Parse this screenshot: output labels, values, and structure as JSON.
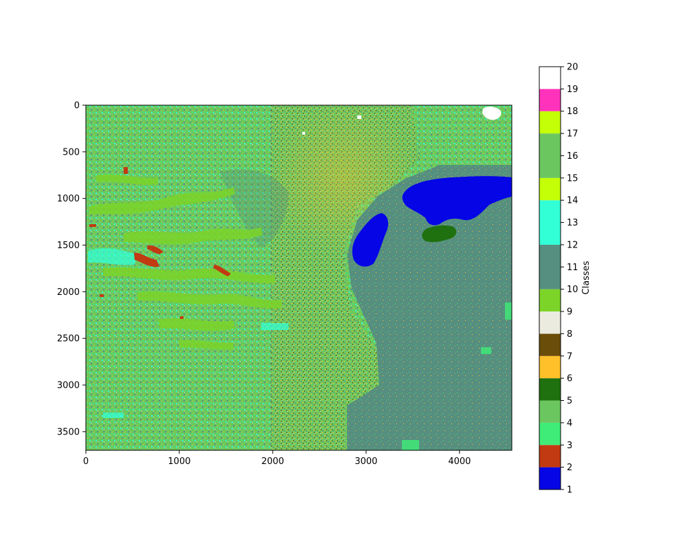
{
  "chart_data": {
    "type": "heatmap",
    "title": "",
    "xlabel": "",
    "ylabel": "",
    "x_range": [
      0,
      4560
    ],
    "y_range": [
      0,
      3700
    ],
    "y_inverted": true,
    "x_ticks": [
      0,
      1000,
      2000,
      3000,
      4000
    ],
    "y_ticks": [
      0,
      500,
      1000,
      1500,
      2000,
      2500,
      3000,
      3500
    ],
    "x_tick_labels": [
      "0",
      "1000",
      "2000",
      "3000",
      "4000"
    ],
    "y_tick_labels": [
      "0",
      "500",
      "1000",
      "1500",
      "2000",
      "2500",
      "3000",
      "3500"
    ],
    "colorbar": {
      "label": "Classes",
      "range": [
        1,
        20
      ],
      "ticks": [
        "1",
        "2",
        "3",
        "4",
        "5",
        "6",
        "7",
        "8",
        "9",
        "10",
        "11",
        "12",
        "13",
        "14",
        "15",
        "16",
        "17",
        "18",
        "19",
        "20"
      ],
      "bands": [
        {
          "from": 1,
          "to": 2,
          "color": "#0505e6"
        },
        {
          "from": 2,
          "to": 3,
          "color": "#c23a12"
        },
        {
          "from": 3,
          "to": 4,
          "color": "#3fec78"
        },
        {
          "from": 4,
          "to": 5,
          "color": "#6cc660"
        },
        {
          "from": 5,
          "to": 6,
          "color": "#1f700f"
        },
        {
          "from": 6,
          "to": 7,
          "color": "#ffc02a"
        },
        {
          "from": 7,
          "to": 8,
          "color": "#6b4d0a"
        },
        {
          "from": 8,
          "to": 9,
          "color": "#ebebe0"
        },
        {
          "from": 9,
          "to": 10,
          "color": "#7cd428"
        },
        {
          "from": 10,
          "to": 12,
          "color": "#568f7f"
        },
        {
          "from": 12,
          "to": 14,
          "color": "#33ffd6"
        },
        {
          "from": 14,
          "to": 15,
          "color": "#c4ff08"
        },
        {
          "from": 15,
          "to": 17,
          "color": "#6cc660"
        },
        {
          "from": 17,
          "to": 18,
          "color": "#c4ff08"
        },
        {
          "from": 18,
          "to": 19,
          "color": "#ff33bb"
        },
        {
          "from": 19,
          "to": 20,
          "color": "#ffffff"
        }
      ]
    },
    "dominant_regions": [
      {
        "class": 1,
        "description_color": "#0505e6",
        "approx_x": [
          2850,
          4560
        ],
        "approx_y": [
          750,
          1750
        ]
      },
      {
        "class": 10,
        "description_color": "#568f7f",
        "approx_x": [
          2800,
          4560
        ],
        "approx_y": [
          900,
          3700
        ]
      },
      {
        "class": 9,
        "description_color": "#7cd428",
        "approx_x": [
          0,
          2000
        ],
        "approx_y": [
          800,
          2700
        ]
      },
      {
        "class": 4,
        "description_color": "#6cc660",
        "approx_x": [
          0,
          2700
        ],
        "approx_y": [
          0,
          3700
        ]
      },
      {
        "class": 6,
        "description_color": "#ffc02a",
        "approx_x": [
          2000,
          3000
        ],
        "approx_y": [
          0,
          3000
        ]
      },
      {
        "class": 2,
        "description_color": "#c23a12",
        "approx_x": [
          500,
          1500
        ],
        "approx_y": [
          1500,
          1850
        ]
      },
      {
        "class": 20,
        "description_color": "#ffffff",
        "approx_x": [
          4150,
          4450
        ],
        "approx_y": [
          0,
          180
        ]
      }
    ]
  }
}
